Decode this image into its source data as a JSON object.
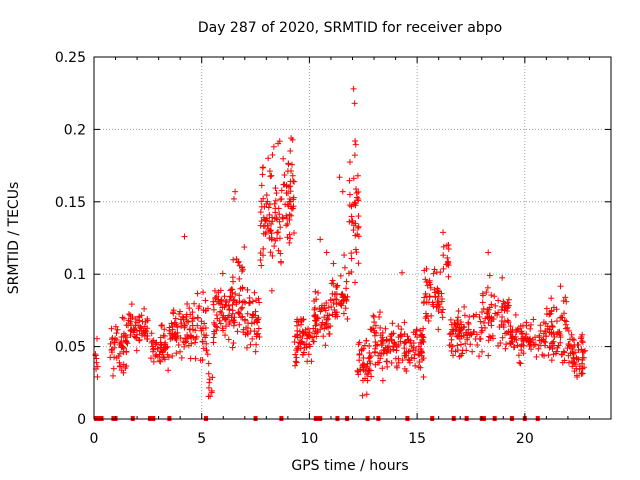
{
  "chart_data": {
    "type": "scatter",
    "title": "Day 287 of 2020, SRMTID for receiver abpo",
    "xlabel": "GPS time / hours",
    "ylabel": "SRMTID / TECUs",
    "xlim": [
      0,
      24
    ],
    "ylim": [
      0,
      0.25
    ],
    "xticks": [
      0,
      5,
      10,
      15,
      20
    ],
    "yticks": [
      0,
      0.05,
      0.1,
      0.15,
      0.2,
      0.25
    ],
    "xtick_labels": [
      "0",
      "5",
      "10",
      "15",
      "20"
    ],
    "ytick_labels": [
      "0",
      "0.05",
      "0.1",
      "0.15",
      "0.2",
      "0.25"
    ],
    "grid": true,
    "marker": "+",
    "color": "#ff0000",
    "clusters": [
      {
        "x_range": [
          0.0,
          0.2
        ],
        "y_mean": 0.045,
        "y_spread": 0.012,
        "n": 8
      },
      {
        "x_range": [
          0.7,
          1.6
        ],
        "y_mean": 0.048,
        "y_spread": 0.015,
        "n": 55
      },
      {
        "x_range": [
          1.6,
          2.5
        ],
        "y_mean": 0.063,
        "y_spread": 0.012,
        "n": 55
      },
      {
        "x_range": [
          2.6,
          3.5
        ],
        "y_mean": 0.048,
        "y_spread": 0.012,
        "n": 50
      },
      {
        "x_range": [
          3.5,
          4.2
        ],
        "y_mean": 0.058,
        "y_spread": 0.015,
        "n": 45
      },
      {
        "x_range": [
          4.2,
          5.3
        ],
        "y_mean": 0.062,
        "y_spread": 0.018,
        "n": 65
      },
      {
        "x_range": [
          5.3,
          5.6
        ],
        "y_mean": 0.028,
        "y_spread": 0.012,
        "n": 10
      },
      {
        "x_range": [
          5.5,
          6.3
        ],
        "y_mean": 0.075,
        "y_spread": 0.02,
        "n": 55
      },
      {
        "x_range": [
          6.3,
          7.0
        ],
        "y_mean": 0.085,
        "y_spread": 0.025,
        "n": 55
      },
      {
        "x_range": [
          7.0,
          7.7
        ],
        "y_mean": 0.07,
        "y_spread": 0.02,
        "n": 45
      },
      {
        "x_range": [
          7.7,
          8.7
        ],
        "y_mean": 0.14,
        "y_spread": 0.035,
        "n": 80
      },
      {
        "x_range": [
          8.7,
          9.3
        ],
        "y_mean": 0.155,
        "y_spread": 0.028,
        "n": 50
      },
      {
        "x_range": [
          9.3,
          10.2
        ],
        "y_mean": 0.055,
        "y_spread": 0.015,
        "n": 60
      },
      {
        "x_range": [
          10.2,
          11.0
        ],
        "y_mean": 0.07,
        "y_spread": 0.015,
        "n": 55
      },
      {
        "x_range": [
          11.0,
          11.8
        ],
        "y_mean": 0.085,
        "y_spread": 0.02,
        "n": 50
      },
      {
        "x_range": [
          11.8,
          12.3
        ],
        "y_mean": 0.145,
        "y_spread": 0.045,
        "n": 40
      },
      {
        "x_range": [
          12.2,
          12.8
        ],
        "y_mean": 0.035,
        "y_spread": 0.02,
        "n": 40
      },
      {
        "x_range": [
          12.8,
          13.5
        ],
        "y_mean": 0.05,
        "y_spread": 0.02,
        "n": 45
      },
      {
        "x_range": [
          13.5,
          15.3
        ],
        "y_mean": 0.05,
        "y_spread": 0.015,
        "n": 110
      },
      {
        "x_range": [
          15.3,
          16.2
        ],
        "y_mean": 0.085,
        "y_spread": 0.02,
        "n": 55
      },
      {
        "x_range": [
          16.2,
          16.5
        ],
        "y_mean": 0.11,
        "y_spread": 0.015,
        "n": 15
      },
      {
        "x_range": [
          16.5,
          18.0
        ],
        "y_mean": 0.06,
        "y_spread": 0.015,
        "n": 85
      },
      {
        "x_range": [
          18.0,
          19.3
        ],
        "y_mean": 0.07,
        "y_spread": 0.018,
        "n": 75
      },
      {
        "x_range": [
          19.3,
          21.0
        ],
        "y_mean": 0.055,
        "y_spread": 0.012,
        "n": 90
      },
      {
        "x_range": [
          21.0,
          22.0
        ],
        "y_mean": 0.065,
        "y_spread": 0.02,
        "n": 65
      },
      {
        "x_range": [
          22.0,
          22.8
        ],
        "y_mean": 0.045,
        "y_spread": 0.015,
        "n": 55
      }
    ],
    "outliers": [
      {
        "x": 4.2,
        "y": 0.126
      },
      {
        "x": 6.55,
        "y": 0.157
      },
      {
        "x": 6.5,
        "y": 0.152
      },
      {
        "x": 10.5,
        "y": 0.124
      },
      {
        "x": 11.4,
        "y": 0.167
      },
      {
        "x": 11.55,
        "y": 0.157
      },
      {
        "x": 12.05,
        "y": 0.228
      },
      {
        "x": 12.1,
        "y": 0.218
      },
      {
        "x": 12.12,
        "y": 0.192
      },
      {
        "x": 9.15,
        "y": 0.194
      },
      {
        "x": 8.35,
        "y": 0.188
      },
      {
        "x": 18.3,
        "y": 0.115
      },
      {
        "x": 14.3,
        "y": 0.101
      },
      {
        "x": 2.4,
        "y": 0.067
      },
      {
        "x": 10.8,
        "y": 0.115
      }
    ],
    "zero_markers_x": [
      0.1,
      0.2,
      0.3,
      0.35,
      0.9,
      1.0,
      1.8,
      2.6,
      2.75,
      3.5,
      5.2,
      7.5,
      8.7,
      10.3,
      10.45,
      10.5,
      11.3,
      11.75,
      12.7,
      13.2,
      14.55,
      15.7,
      16.7,
      17.3,
      18.0,
      18.1,
      18.6,
      19.4,
      20.0,
      20.6
    ]
  }
}
